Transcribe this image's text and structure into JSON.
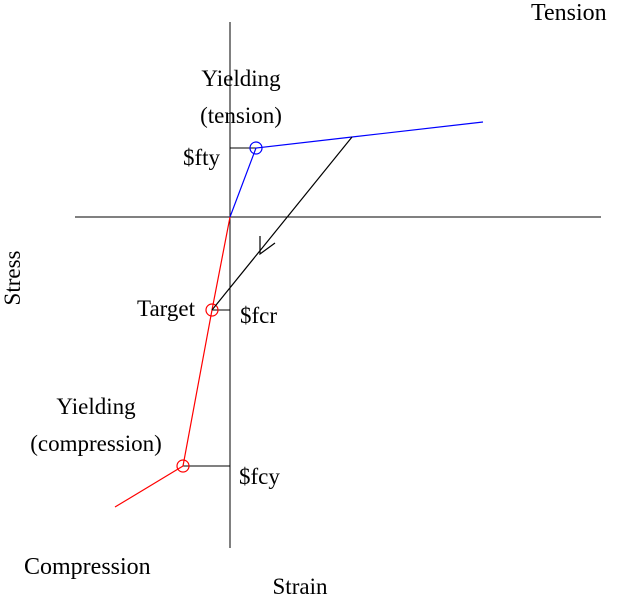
{
  "labels": {
    "tension": "Tension",
    "compression": "Compression",
    "stress": "Stress",
    "strain": "Strain",
    "yielding_tension_line1": "Yielding",
    "yielding_tension_line2": "(tension)",
    "fty": "$fty",
    "target": "Target",
    "fcr": "$fcr",
    "yielding_compression_line1": "Yielding",
    "yielding_compression_line2": "(compression)",
    "fcy": "$fcy"
  },
  "colors": {
    "tension": "#0000ff",
    "compression": "#ff0000",
    "axes": "#000000",
    "unloading": "#000000"
  }
}
